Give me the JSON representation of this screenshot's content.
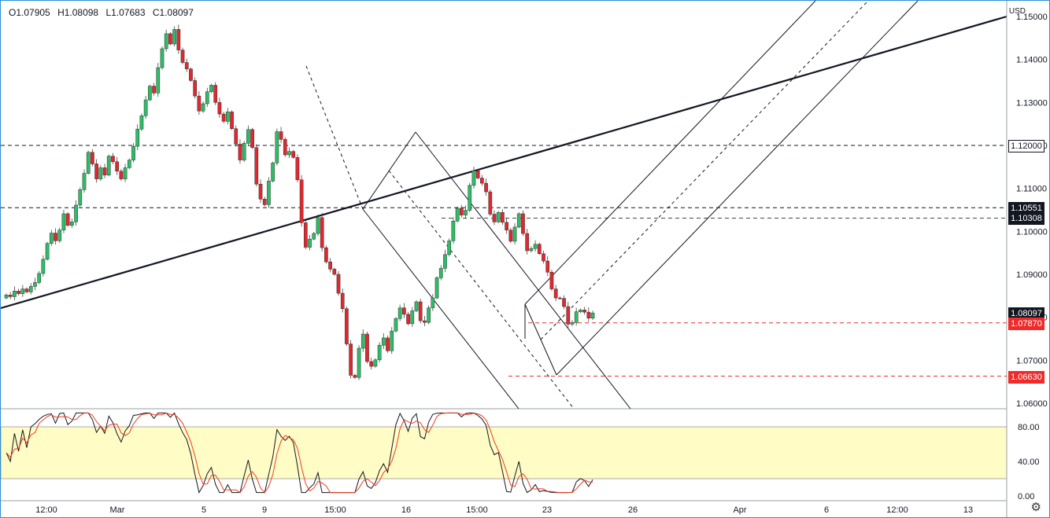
{
  "ohlc": {
    "open": "O1.07905",
    "high": "H1.08098",
    "low": "L1.07683",
    "close": "C1.08097"
  },
  "currency": "USD",
  "price_ticks": [
    "1.15000",
    "1.14000",
    "1.13000",
    "1.12000",
    "1.11000",
    "1.10000",
    "1.09000",
    "1.08000",
    "1.07000",
    "1.06000"
  ],
  "time_ticks": [
    "12:00",
    "Mar",
    "5",
    "9",
    "15:00",
    "16",
    "15:00",
    "23",
    "26",
    "Apr",
    "6",
    "12:00",
    "13"
  ],
  "osc_ticks": [
    "80.00",
    "40.00",
    "0.00"
  ],
  "price_labels": [
    {
      "name": "level-1-12000",
      "text": "1.12000",
      "bg": "#ffffff",
      "fg": "#131722",
      "border": "#131722"
    },
    {
      "name": "level-1-10551",
      "text": "1.10551",
      "bg": "#131722",
      "fg": "#ffffff",
      "border": "#131722"
    },
    {
      "name": "level-1-10308",
      "text": "1.10308",
      "bg": "#131722",
      "fg": "#ffffff",
      "border": "#131722"
    },
    {
      "name": "last-price",
      "text": "1.08097",
      "bg": "#131722",
      "fg": "#ffffff",
      "border": "#131722"
    },
    {
      "name": "level-1-07870",
      "text": "1.07870",
      "bg": "#ef2b2b",
      "fg": "#ffffff",
      "border": "#ef2b2b"
    },
    {
      "name": "level-1-06630",
      "text": "1.06630",
      "bg": "#ef2b2b",
      "fg": "#ffffff",
      "border": "#ef2b2b"
    }
  ],
  "colors": {
    "up": "#26a69a",
    "up_fill": "#2ebd67",
    "down": "#e0282e",
    "stoch_k": "#131722",
    "stoch_d": "#f23c1e",
    "band": "#fffcc6"
  },
  "icons": {
    "settings": "gear-icon"
  },
  "chart_data": {
    "type": "candlestick",
    "symbol_currency": "USD",
    "ylim": [
      1.06,
      1.15
    ],
    "osc_ylim": [
      0,
      100
    ],
    "osc_band": [
      20,
      80
    ],
    "horizontal_levels": [
      1.12,
      1.10551,
      1.10308,
      1.0787,
      1.0663
    ],
    "last_price": 1.08097,
    "closes": [
      1.0852,
      1.0848,
      1.0861,
      1.0855,
      1.0866,
      1.0859,
      1.0872,
      1.0881,
      1.0902,
      1.0935,
      1.0972,
      1.0996,
      1.0978,
      1.1003,
      1.1041,
      1.1014,
      1.1022,
      1.1061,
      1.1097,
      1.1135,
      1.1184,
      1.1157,
      1.1122,
      1.1148,
      1.1131,
      1.1175,
      1.1162,
      1.114,
      1.1122,
      1.1148,
      1.1166,
      1.1198,
      1.1238,
      1.1269,
      1.1306,
      1.1338,
      1.1322,
      1.1381,
      1.1425,
      1.146,
      1.1436,
      1.147,
      1.1422,
      1.1393,
      1.1378,
      1.1351,
      1.1315,
      1.128,
      1.1297,
      1.1325,
      1.134,
      1.13,
      1.1273,
      1.1256,
      1.1278,
      1.1239,
      1.1203,
      1.1166,
      1.1205,
      1.1237,
      1.1195,
      1.111,
      1.1075,
      1.1062,
      1.1117,
      1.1159,
      1.1232,
      1.1214,
      1.1178,
      1.1186,
      1.1172,
      1.112,
      1.102,
      1.0963,
      1.0982,
      1.0995,
      1.1032,
      1.0962,
      1.0929,
      1.0912,
      1.09,
      1.0856,
      1.082,
      1.0738,
      1.0665,
      1.066,
      1.0728,
      1.0761,
      1.0697,
      1.0686,
      1.0701,
      1.0735,
      1.0752,
      1.0722,
      1.0768,
      1.0797,
      1.0822,
      1.0807,
      1.0785,
      1.0815,
      1.0836,
      1.0792,
      1.0788,
      1.0822,
      1.0845,
      1.0892,
      1.0914,
      1.0946,
      1.0978,
      1.1024,
      1.1054,
      1.1038,
      1.1049,
      1.1107,
      1.1141,
      1.1124,
      1.1112,
      1.1092,
      1.104,
      1.1022,
      1.1044,
      1.1021,
      1.1003,
      1.0977,
      1.101,
      1.1041,
      1.0995,
      1.0955,
      1.096,
      1.097,
      1.0948,
      1.0931,
      1.0905,
      1.0866,
      1.0845,
      1.0844,
      1.0825,
      1.0784,
      1.0788,
      1.0813,
      1.0817,
      1.0812,
      1.0798,
      1.081
    ]
  }
}
